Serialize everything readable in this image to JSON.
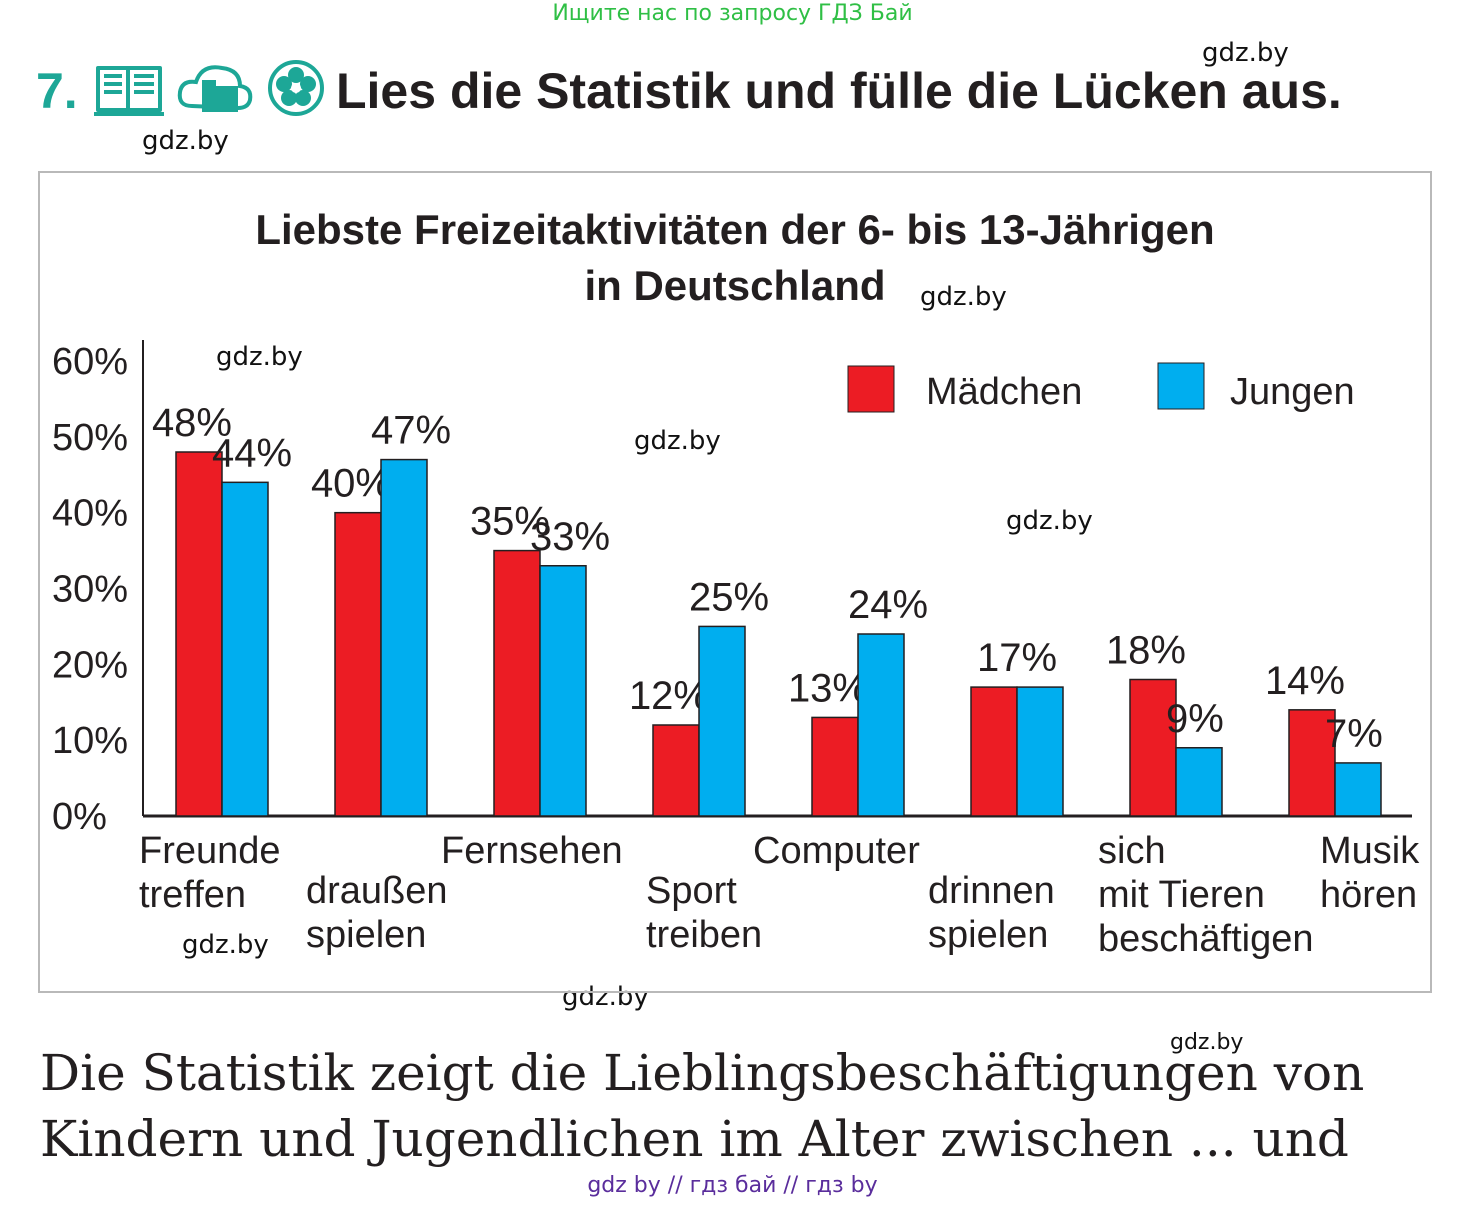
{
  "banner": "Ищите нас по запросу ГДЗ Бай",
  "watermark": "gdz.by",
  "exercise": {
    "number": "7.",
    "title": "Lies die Statistik und fülle die Lücken aus.",
    "icons": [
      "book-icon",
      "cloud-folder-icon",
      "flower-icon"
    ]
  },
  "colors": {
    "maedchen": "#ec1c24",
    "jungen": "#00aeef",
    "teal": "#1da797"
  },
  "chart_data": {
    "type": "bar",
    "title": "Liebste Freizeitaktivitäten der 6- bis 13-Jährigen",
    "subtitle": "in Deutschland",
    "categories": [
      [
        "Freunde",
        "treffen"
      ],
      [
        "draußen",
        "spielen"
      ],
      [
        "Fernsehen"
      ],
      [
        "Sport",
        "treiben"
      ],
      [
        "Computer"
      ],
      [
        "drinnen",
        "spielen"
      ],
      [
        "sich",
        "mit Tieren",
        "beschäftigen"
      ],
      [
        "Musik",
        "hören"
      ]
    ],
    "series": [
      {
        "name": "Mädchen",
        "values": [
          48,
          40,
          35,
          12,
          13,
          17,
          18,
          14
        ],
        "labels": [
          "48%",
          "40%",
          "35%",
          "12%",
          "13%",
          "17%",
          "18%",
          "14%"
        ]
      },
      {
        "name": "Jungen",
        "values": [
          44,
          47,
          33,
          25,
          24,
          17,
          9,
          7
        ],
        "labels": [
          "44%",
          "47%",
          "33%",
          "25%",
          "24%",
          "",
          "9%",
          "7%"
        ]
      }
    ],
    "yticks": [
      "0%",
      "10%",
      "20%",
      "30%",
      "40%",
      "50%",
      "60%"
    ],
    "ylim": [
      0,
      60
    ],
    "legend_position": "top-right",
    "xlabel": "",
    "ylabel": "",
    "grid": false
  },
  "text": {
    "line1": "Die Statistik zeigt die Lieblingsbeschäftigungen von",
    "line2": "Kindern und Jugendlichen im Alter zwischen ... und"
  },
  "footer": "gdz by  //  гдз бай  //  гдз by"
}
